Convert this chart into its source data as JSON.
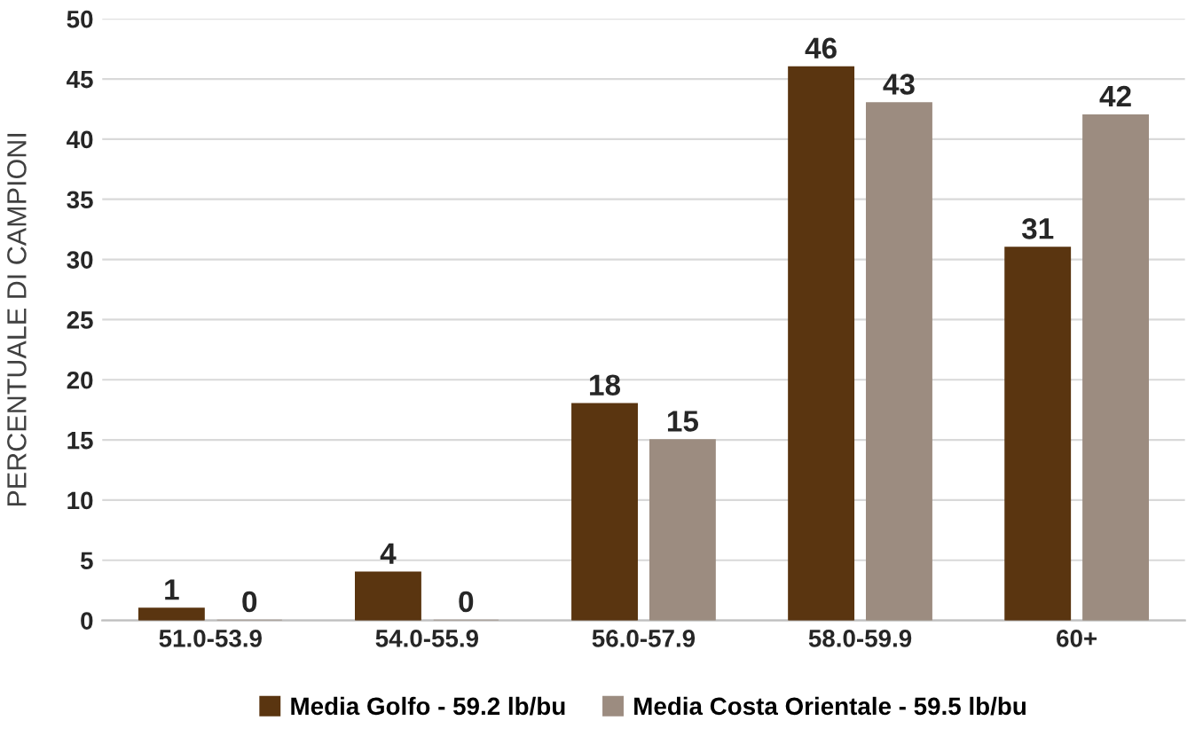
{
  "chart_data": {
    "type": "bar",
    "ylabel": "PERCENTUALE DI CAMPIONI",
    "categories": [
      "51.0-53.9",
      "54.0-55.9",
      "56.0-57.9",
      "58.0-59.9",
      "60+"
    ],
    "series": [
      {
        "name": "Media Golfo - 59.2 lb/bu",
        "color": "#5a3510",
        "values": [
          1,
          4,
          18,
          46,
          31
        ]
      },
      {
        "name": "Media Costa Orientale - 59.5 lb/bu",
        "color": "#9c8c80",
        "values": [
          0,
          0,
          15,
          43,
          42
        ]
      }
    ],
    "ylim": [
      0,
      50
    ],
    "yticks": [
      0,
      5,
      10,
      15,
      20,
      25,
      30,
      35,
      40,
      45,
      50
    ],
    "grid": "y",
    "legend": "bottom",
    "data_labels": true
  }
}
